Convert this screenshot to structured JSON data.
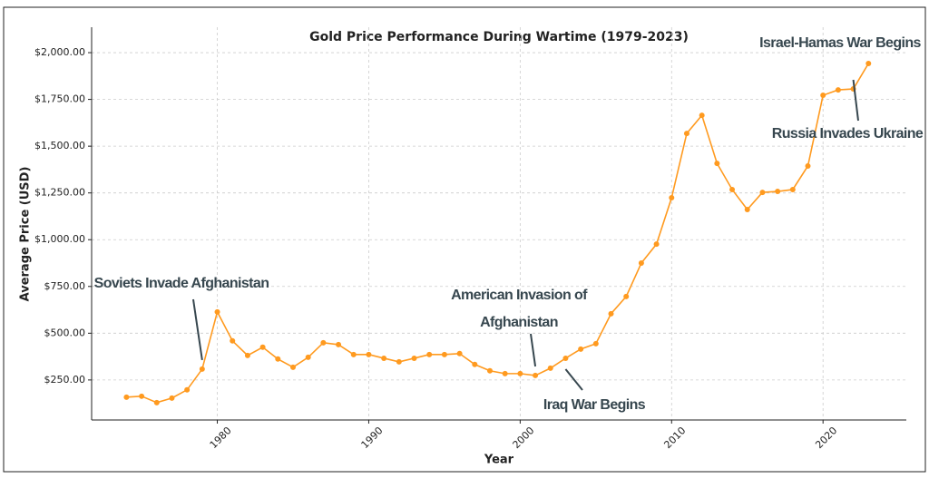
{
  "chart_data": {
    "type": "line",
    "title": "Gold Price Performance During Wartime (1979-2023)",
    "x_label": "Year",
    "y_label": "Average Price (USD)",
    "x": [
      1974,
      1975,
      1976,
      1977,
      1978,
      1979,
      1980,
      1981,
      1982,
      1983,
      1984,
      1985,
      1986,
      1987,
      1988,
      1989,
      1990,
      1991,
      1992,
      1993,
      1994,
      1995,
      1996,
      1997,
      1998,
      1999,
      2000,
      2001,
      2002,
      2003,
      2004,
      2005,
      2006,
      2007,
      2008,
      2009,
      2010,
      2011,
      2012,
      2013,
      2014,
      2015,
      2016,
      2017,
      2018,
      2019,
      2020,
      2021,
      2022,
      2023
    ],
    "values": [
      158,
      163,
      129,
      153,
      197,
      308,
      614,
      459,
      381,
      425,
      362,
      318,
      371,
      449,
      439,
      386,
      386,
      366,
      347,
      366,
      386,
      386,
      391,
      333,
      299,
      284,
      284,
      274,
      313,
      366,
      415,
      444,
      604,
      696,
      875,
      976,
      1224,
      1568,
      1665,
      1408,
      1268,
      1161,
      1253,
      1258,
      1268,
      1394,
      1772,
      1801,
      1806,
      1942
    ],
    "color": "#ff9a1f",
    "xlim": [
      1971.7,
      2025.5
    ],
    "ylim": [
      36,
      2136
    ],
    "xticks": [
      1980,
      1990,
      2000,
      2010,
      2020
    ],
    "yticks": [
      {
        "value": 250,
        "label": "$250.00"
      },
      {
        "value": 500,
        "label": "$500.00"
      },
      {
        "value": 750,
        "label": "$750.00"
      },
      {
        "value": 1000,
        "label": "$1,000.00"
      },
      {
        "value": 1250,
        "label": "$1,250.00"
      },
      {
        "value": 1500,
        "label": "$1,500.00"
      },
      {
        "value": 1750,
        "label": "$1,750.00"
      },
      {
        "value": 2000,
        "label": "$2,000.00"
      }
    ],
    "grid": true,
    "annotations": [
      {
        "lines": [
          "Soviets Invade Afghanistan"
        ],
        "x": 1979
      },
      {
        "lines": [
          "American Invasion of",
          "Afghanistan"
        ],
        "x": 2001
      },
      {
        "lines": [
          "Iraq War Begins"
        ],
        "x": 2003
      },
      {
        "lines": [
          "Israel-Hamas War Begins"
        ],
        "x": 2023
      },
      {
        "lines": [
          "Russia Invades Ukraine"
        ],
        "x": 2022
      }
    ]
  }
}
